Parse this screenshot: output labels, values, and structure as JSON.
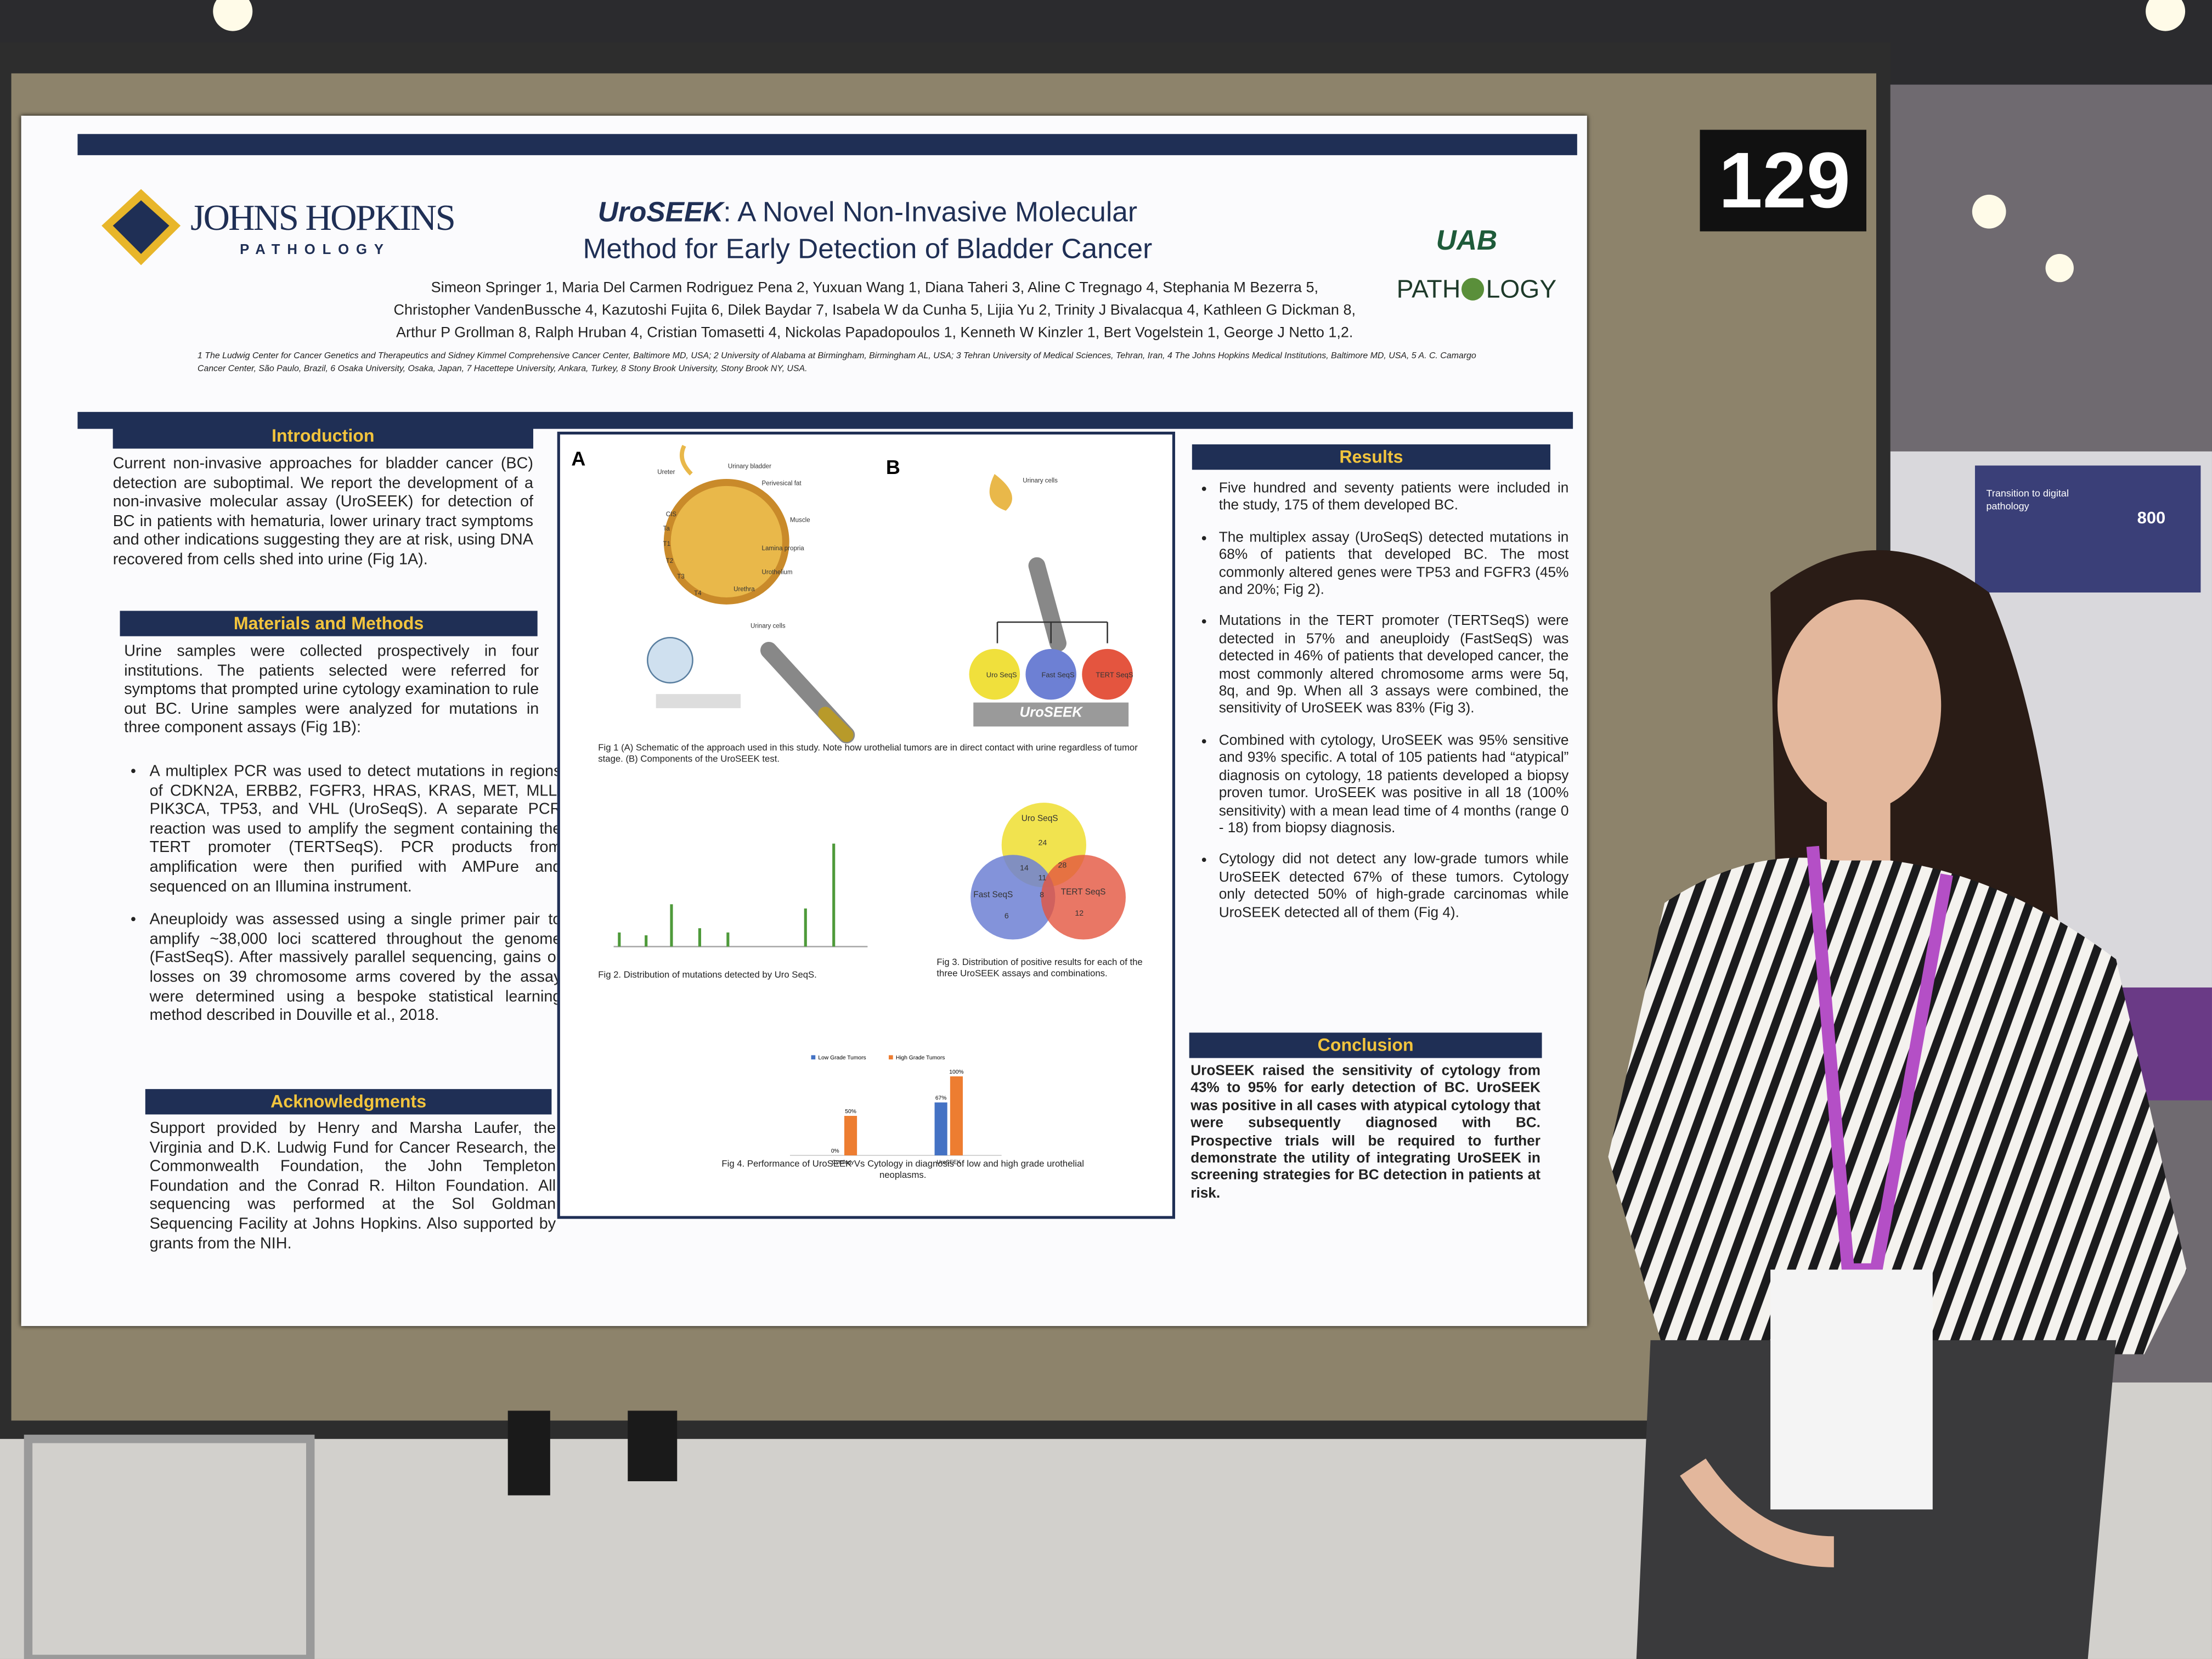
{
  "booth_number": "129",
  "hall_sign": {
    "title": "Transition to digital pathology",
    "number": 800
  },
  "poster": {
    "logo_left": {
      "name": "JOHNS HOPKINS",
      "sub": "PATHOLOGY"
    },
    "logo_right": {
      "mark": "UAB",
      "name_start": "PATH",
      "name_end": "LOGY"
    },
    "title_bold": "UroSEEK",
    "title_rest": ": A Novel Non-Invasive Molecular Method for Early Detection of Bladder Cancer",
    "authors": [
      "Simeon Springer 1, Maria Del Carmen Rodriguez Pena 2, Yuxuan Wang 1, Diana Taheri 3, Aline C Tregnago 4, Stephania M Bezerra 5,",
      "Christopher VandenBussche 4, Kazutoshi Fujita 6, Dilek Baydar 7, Isabela W da Cunha 5, Lijia Yu 2, Trinity J Bivalacqua 4, Kathleen G Dickman 8,",
      "Arthur P Grollman 8, Ralph Hruban 4, Cristian Tomasetti 4, Nickolas Papadopoulos 1, Kenneth W Kinzler 1, Bert Vogelstein 1, George J Netto 1,2."
    ],
    "affiliations": "1 The Ludwig Center for Cancer Genetics and Therapeutics and Sidney Kimmel Comprehensive Cancer Center, Baltimore MD, USA; 2 University of Alabama at Birmingham, Birmingham AL, USA; 3 Tehran University of Medical Sciences, Tehran, Iran, 4 The Johns Hopkins Medical Institutions, Baltimore MD, USA, 5 A. C. Camargo Cancer Center, São Paulo, Brazil, 6 Osaka University, Osaka, Japan, 7 Hacettepe University, Ankara, Turkey, 8 Stony Brook University, Stony Brook NY, USA.",
    "introduction": {
      "heading": "Introduction",
      "text": "Current non-invasive approaches for bladder cancer (BC) detection are suboptimal. We report the development of a non-invasive molecular assay (UroSEEK) for detection of BC in patients with hematuria, lower urinary tract symptoms and other indications suggesting they are at risk, using DNA recovered from cells shed into urine (Fig 1A)."
    },
    "methods": {
      "heading": "Materials and Methods",
      "text": "Urine samples were collected prospectively in four institutions. The patients selected were referred for symptoms that prompted urine cytology examination to rule out BC. Urine samples were analyzed for mutations in three component assays (Fig 1B):",
      "bullets": [
        "A multiplex PCR was used to detect mutations in regions of CDKN2A, ERBB2, FGFR3, HRAS, KRAS, MET, MLL, PIK3CA, TP53, and VHL (UroSeqS). A separate PCR reaction was used to amplify the segment containing the TERT promoter (TERTSeqS). PCR products from amplification were then purified with AMPure and sequenced on an Illumina instrument.",
        "Aneuploidy was assessed using a single primer pair to amplify ~38,000 loci scattered throughout the genome (FastSeqS). After massively parallel sequencing, gains or losses on 39 chromosome arms covered by the assay were determined using a bespoke statistical learning method described in Douville et al., 2018."
      ]
    },
    "acknowledgments": {
      "heading": "Acknowledgments",
      "text": "Support provided by Henry and Marsha Laufer, the Virginia and D.K. Ludwig Fund for Cancer Research, the Commonwealth Foundation, the John Templeton Foundation and the Conrad R. Hilton Foundation. All sequencing was performed at the Sol Goldman Sequencing Facility at Johns Hopkins. Also supported by grants from the NIH."
    },
    "results": {
      "heading": "Results",
      "bullets": [
        "Five hundred and seventy patients were included in the study, 175 of them developed BC.",
        "The multiplex assay (UroSeqS) detected mutations in 68% of patients that developed BC. The most commonly altered genes were TP53 and FGFR3 (45% and 20%; Fig 2).",
        "Mutations in the TERT promoter (TERTSeqS) were detected in 57% and aneuploidy (FastSeqS) was detected in 46% of patients that developed cancer, the most commonly altered chromosome arms were 5q, 8q, and 9p. When all 3 assays were combined, the sensitivity of UroSEEK was 83% (Fig 3).",
        "Combined with cytology, UroSEEK was 95% sensitive and 93% specific. A total of 105 patients had “atypical” diagnosis on cytology, 18 patients developed a biopsy proven tumor. UroSEEK was positive in all 18 (100% sensitivity) with a mean lead time of 4 months (range 0 - 18) from biopsy diagnosis.",
        "Cytology did not detect any low-grade tumors while UroSEEK detected 67% of these tumors. Cytology only detected 50% of high-grade carcinomas while UroSEEK detected all of them (Fig 4)."
      ]
    },
    "conclusion": {
      "heading": "Conclusion",
      "text": "UroSEEK raised the sensitivity of cytology from 43% to 95% for early detection of BC. UroSEEK was positive in all cases with atypical cytology that were subsequently diagnosed with BC. Prospective trials will be required to further demonstrate the utility of integrating UroSEEK in screening strategies for BC detection in patients at risk."
    },
    "fig1": {
      "panel_a": "A",
      "panel_b": "B",
      "labels_a": [
        "Ureter",
        "Urinary bladder",
        "Perivesical fat",
        "Muscle",
        "Lamina propria",
        "Urothelium",
        "Urethra",
        "CIS",
        "Ta",
        "T1",
        "T2",
        "T3",
        "T4",
        "Urinary cells"
      ],
      "label_b": "Urinary cells",
      "assays": [
        "Uro SeqS",
        "Fast SeqS",
        "TERT SeqS"
      ],
      "test": "UroSEEK",
      "caption": "Fig 1 (A) Schematic of the approach used in this study. Note how urothelial tumors are in direct contact with urine regardless of tumor stage. (B) Components of the UroSEEK test."
    },
    "fig2": {
      "caption": "Fig 2. Distribution of mutations detected by Uro SeqS."
    },
    "fig3": {
      "sets": [
        "Uro SeqS",
        "Fast SeqS",
        "TERT SeqS"
      ],
      "counts": {
        "uro": 24,
        "uro_tert": 28,
        "center": 11,
        "uro_fast": 14,
        "fast_tert": 8,
        "fast": 6,
        "tert": 12
      },
      "caption": "Fig 3. Distribution of positive results for each of the three UroSEEK assays and combinations."
    },
    "fig4": {
      "type": "bar",
      "categories": [
        "Cytology",
        "UroSEEK"
      ],
      "ylim": [
        0,
        100
      ],
      "series": [
        {
          "name": "Low Grade Tumors",
          "color": "#4472c4",
          "values": [
            0,
            67
          ],
          "value_labels": [
            "0%",
            "67%"
          ]
        },
        {
          "name": "High Grade Tumors",
          "color": "#ed7d31",
          "values": [
            50,
            100
          ],
          "value_labels": [
            "50%",
            "100%"
          ]
        }
      ],
      "caption": "Fig 4. Performance of UroSEEK Vs Cytology in diagnosis of low and high grade urothelial neoplasms."
    }
  }
}
